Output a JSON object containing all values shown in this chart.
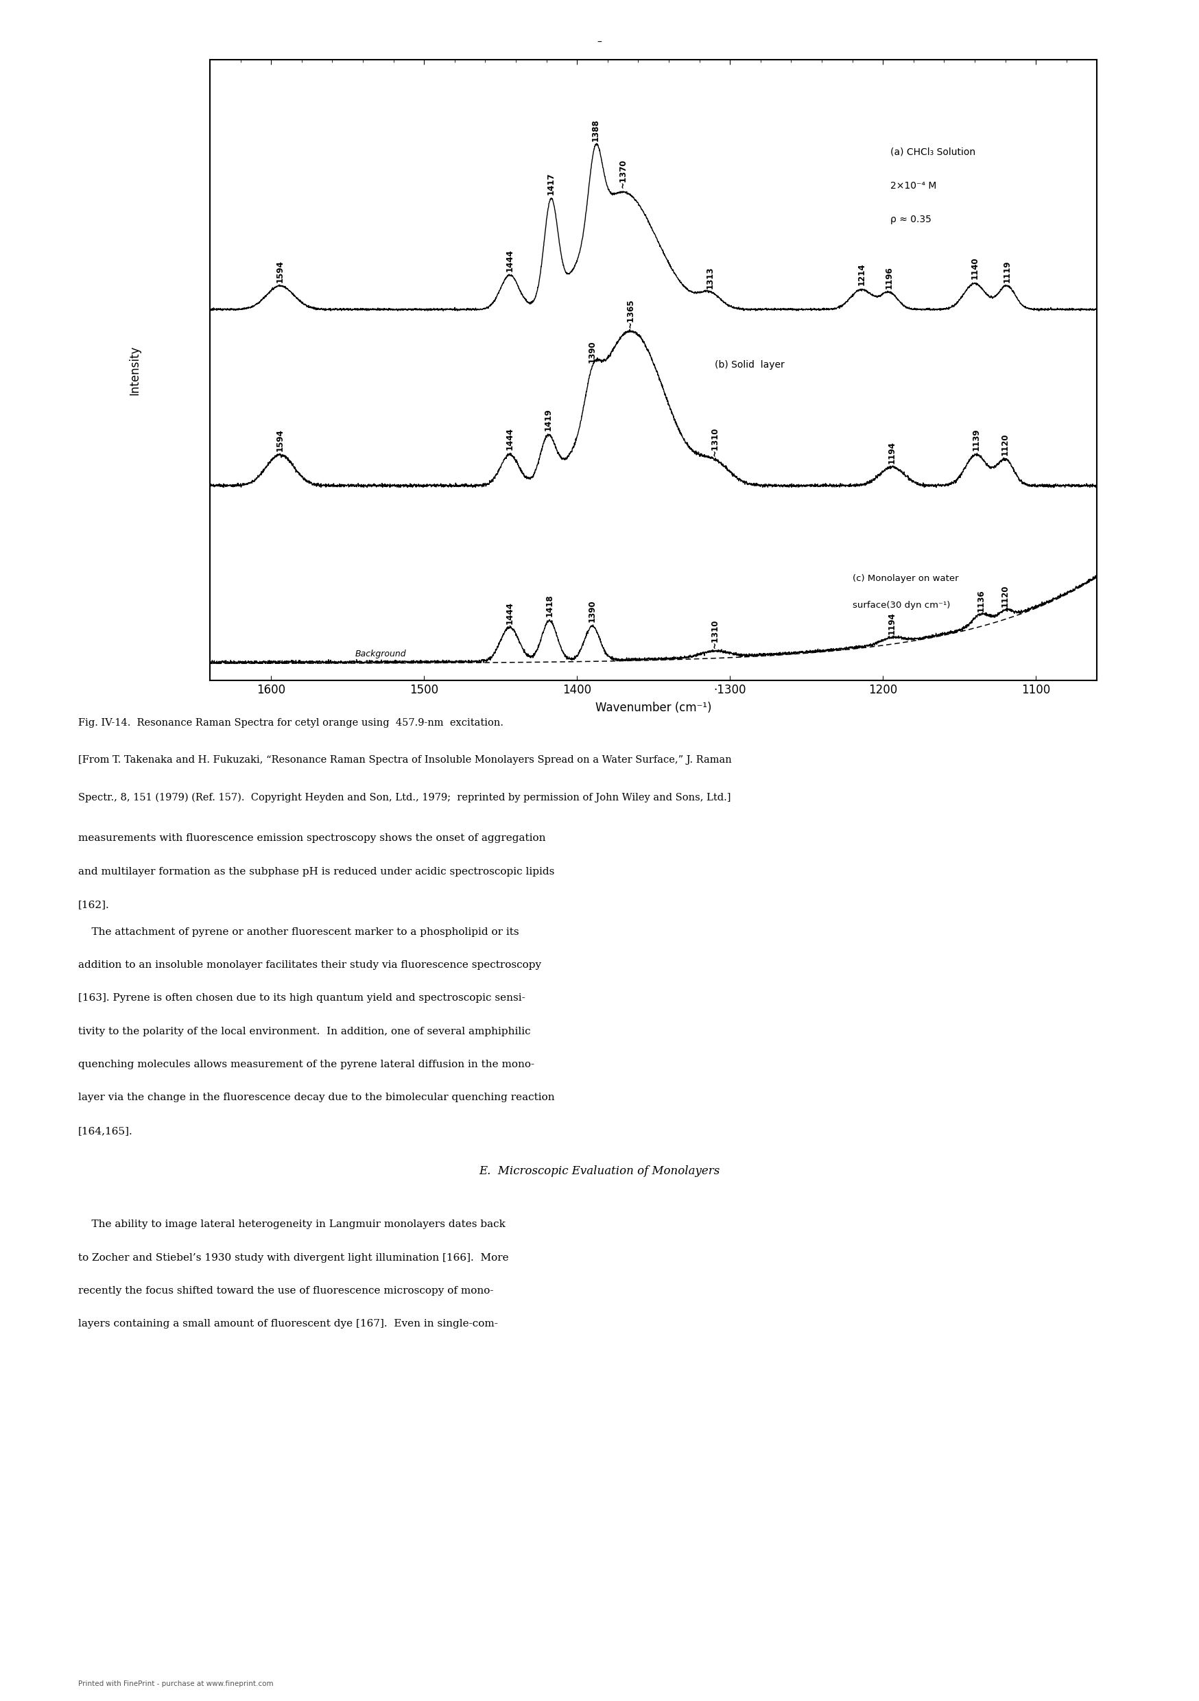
{
  "xlabel": "Wavenumber (cm⁻¹)",
  "ylabel": "Intensity",
  "xmin": 1060,
  "xmax": 1640,
  "xticks": [
    1600,
    1500,
    1400,
    1300,
    1200,
    1100
  ],
  "xtick_labels": [
    "1600",
    "1500",
    "1400",
    "·1300",
    "1200",
    "1100"
  ],
  "panel_a_annotation": "(a) CHCl₃ Solution\n2×10⁻⁴ M\nρ ≈ 0.35",
  "panel_b_annotation": "(b) Solid  layer",
  "panel_c_annotation": "(c) Monolayer on water\nsurface(30 dyn cm⁻¹)",
  "background_label": "Background",
  "caption_line1": "Fig. IV-14.  Resonance Raman Spectra for cetyl orange using  457.9-nm  excitation.",
  "caption_line2": "[From T. Takenaka and H. Fukuzaki, “Resonance Raman Spectra of Insoluble Monolayers Spread on a Water Surface,” J. Raman Spectr., 8, 151 (1979) (Ref. 157).  Copyright",
  "caption_line3": "Heyden and Son, Ltd., 1979;  reprinted by permission of John Wiley and Sons, Ltd.]",
  "body1": "measurements with fluorescence emission spectroscopy shows the onset of aggregation\nand multilayer formation as the subphase pH is reduced under acidic spectroscopic lipids\n[162].",
  "body2_indent": "    The attachment of pyrene or another fluorescent marker to a phospholipid or its\naddition to an insoluble monolayer facilitates their study via fluorescence spectroscopy\n[163]. Pyrene is often chosen due to its high quantum yield and spectroscopic sensi-\ntivity to the polarity of the local environment.  In addition, one of several amphiphilic\nquenching molecules allows measurement of the pyrene lateral diffusion in the mono-\nlayer via the change in the fluorescence decay due to the bimolecular quenching reaction\n[164,165].",
  "section_heading": "E.  Microscopic Evaluation of Monolayers",
  "body3_indent": "    The ability to image lateral heterogeneity in Langmuir monolayers dates back\nto Zocher and Stiebel’s 1930 study with divergent light illumination [166].  More\nrecently the focus shifted toward the use of fluorescence microscopy of mono-\nlayers containing a small amount of fluorescent dye [167].  Even in single-com-",
  "footer": "Printed with FinePrint - purchase at www.fineprint.com",
  "top_dash": "–"
}
